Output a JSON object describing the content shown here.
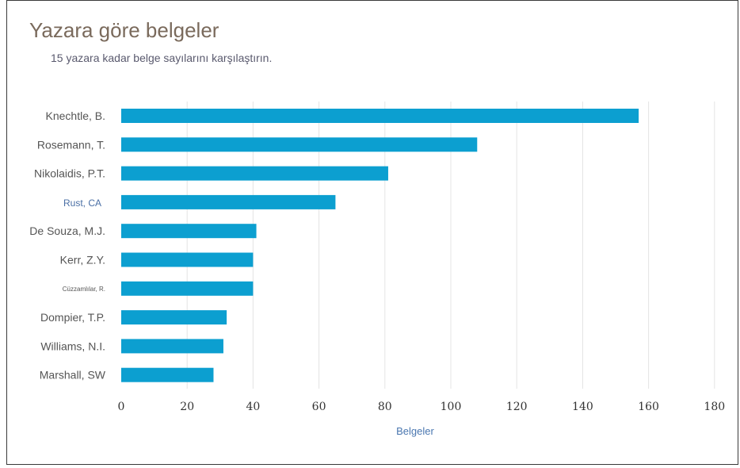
{
  "chart_data": {
    "type": "bar",
    "orientation": "horizontal",
    "title": "Yazara göre belgeler",
    "subtitle": "15 yazara kadar belge sayılarını karşılaştırın.",
    "xlabel": "Belgeler",
    "ylabel": "",
    "xlim": [
      0,
      180
    ],
    "x_ticks": [
      0,
      20,
      40,
      60,
      80,
      100,
      120,
      140,
      160,
      180
    ],
    "grid": "vertical",
    "legend": "none",
    "bar_color": "#0c9fd0",
    "categories": [
      "Knechtle, B.",
      "Rosemann, T.",
      "Nikolaidis, P.T.",
      "Rust, CA",
      "De Souza, M.J.",
      "Kerr, Z.Y.",
      "Cüzzamlılar, R.",
      "Dompier, T.P.",
      "Williams, N.I.",
      "Marshall, SW"
    ],
    "values": [
      157,
      108,
      81,
      65,
      41,
      40,
      40,
      32,
      31,
      28
    ]
  }
}
